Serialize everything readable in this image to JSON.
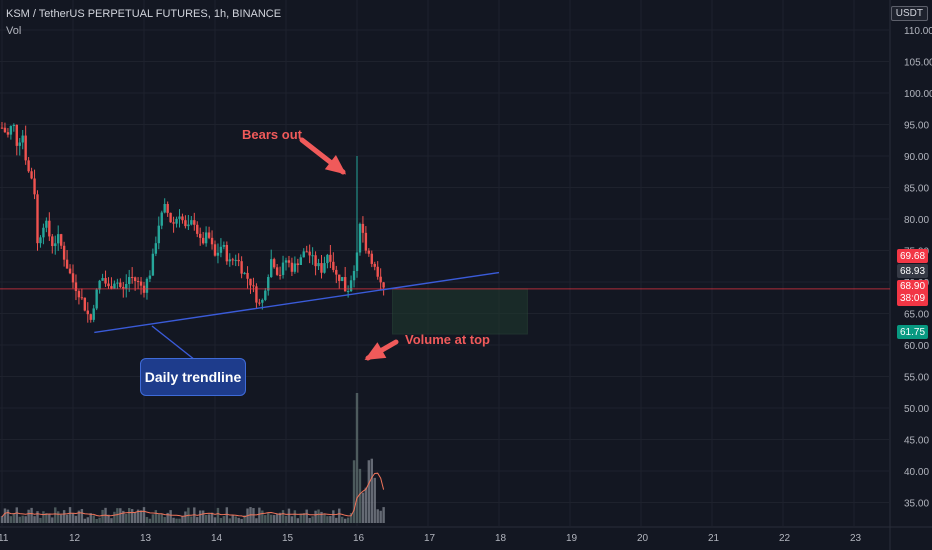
{
  "header": {
    "symbol_line": "KSM / TetherUS PERPETUAL FUTURES, 1h, BINANCE",
    "volume_label": "Vol",
    "currency": "USDT"
  },
  "annotations": {
    "bears_out": "Bears out",
    "volume_at_top": "Volume at top",
    "daily_trendline": "Daily trendline"
  },
  "price_labels": [
    {
      "value": "69.68",
      "color": "#f23645"
    },
    {
      "value": "68.93",
      "color": "#363a45"
    },
    {
      "value": "68.90",
      "color": "#f23645",
      "sub": "38:09"
    },
    {
      "value": "61.75",
      "color": "#089981"
    }
  ],
  "chart_data": {
    "type": "candlestick",
    "y_ticks": [
      "110.00",
      "105.00",
      "100.00",
      "95.00",
      "90.00",
      "85.00",
      "80.00",
      "75.00",
      "70.00",
      "65.00",
      "60.00",
      "55.00",
      "50.00",
      "45.00",
      "40.00",
      "35.00"
    ],
    "y_tick_values": [
      110,
      105,
      100,
      95,
      90,
      85,
      80,
      75,
      70,
      65,
      60,
      55,
      50,
      45,
      40,
      35
    ],
    "x_ticks": [
      "11",
      "12",
      "13",
      "14",
      "15",
      "16",
      "17",
      "18",
      "19",
      "20",
      "21",
      "22",
      "23"
    ],
    "colors": {
      "up": "#26a69a",
      "down": "#ef5350",
      "trendline": "#3a5bd9",
      "hline": "#f23645",
      "volume_ma": "#f0745a"
    },
    "close_path": [
      [
        11.0,
        94.5
      ],
      [
        11.1,
        93.0
      ],
      [
        11.15,
        96.0
      ],
      [
        11.2,
        92.0
      ],
      [
        11.3,
        93.5
      ],
      [
        11.35,
        88.0
      ],
      [
        11.45,
        86.0
      ],
      [
        11.5,
        76.0
      ],
      [
        11.6,
        80.0
      ],
      [
        11.7,
        76.0
      ],
      [
        11.8,
        77.0
      ],
      [
        11.9,
        73.0
      ],
      [
        12.0,
        70.0
      ],
      [
        12.1,
        68.0
      ],
      [
        12.2,
        65.0
      ],
      [
        12.25,
        64.0
      ],
      [
        12.3,
        67.0
      ],
      [
        12.4,
        71.0
      ],
      [
        12.5,
        69.0
      ],
      [
        12.6,
        70.5
      ],
      [
        12.7,
        68.5
      ],
      [
        12.8,
        71.0
      ],
      [
        12.9,
        70.0
      ],
      [
        13.0,
        69.0
      ],
      [
        13.1,
        72.0
      ],
      [
        13.2,
        79.0
      ],
      [
        13.3,
        82.0
      ],
      [
        13.4,
        79.0
      ],
      [
        13.5,
        81.0
      ],
      [
        13.6,
        78.0
      ],
      [
        13.7,
        80.0
      ],
      [
        13.8,
        76.0
      ],
      [
        13.9,
        77.5
      ],
      [
        14.0,
        74.0
      ],
      [
        14.1,
        76.0
      ],
      [
        14.2,
        73.0
      ],
      [
        14.3,
        74.0
      ],
      [
        14.4,
        71.5
      ],
      [
        14.5,
        70.0
      ],
      [
        14.6,
        67.0
      ],
      [
        14.65,
        66.0
      ],
      [
        14.7,
        69.0
      ],
      [
        14.8,
        74.0
      ],
      [
        14.9,
        71.0
      ],
      [
        15.0,
        73.5
      ],
      [
        15.1,
        72.0
      ],
      [
        15.2,
        74.0
      ],
      [
        15.3,
        75.0
      ],
      [
        15.4,
        73.0
      ],
      [
        15.5,
        72.0
      ],
      [
        15.6,
        75.0
      ],
      [
        15.7,
        71.0
      ],
      [
        15.8,
        70.5
      ],
      [
        15.85,
        68.0
      ],
      [
        15.9,
        70.0
      ],
      [
        15.95,
        72.0
      ],
      [
        16.0,
        75.0
      ],
      [
        16.05,
        81.0
      ],
      [
        16.1,
        76.0
      ],
      [
        16.15,
        75.0
      ],
      [
        16.2,
        74.0
      ],
      [
        16.25,
        72.0
      ],
      [
        16.3,
        70.0
      ],
      [
        16.38,
        68.9
      ]
    ],
    "volume": {
      "spike_day": 16.0,
      "spike_value": "large",
      "ma_line": true
    },
    "trendline": {
      "from": [
        12.3,
        62.0
      ],
      "to": [
        18.0,
        71.5
      ]
    },
    "horizontal_line": 68.9,
    "projection_box": {
      "x_from": 16.5,
      "x_to": 18.4,
      "y_from": 61.75,
      "y_to": 68.9
    }
  }
}
